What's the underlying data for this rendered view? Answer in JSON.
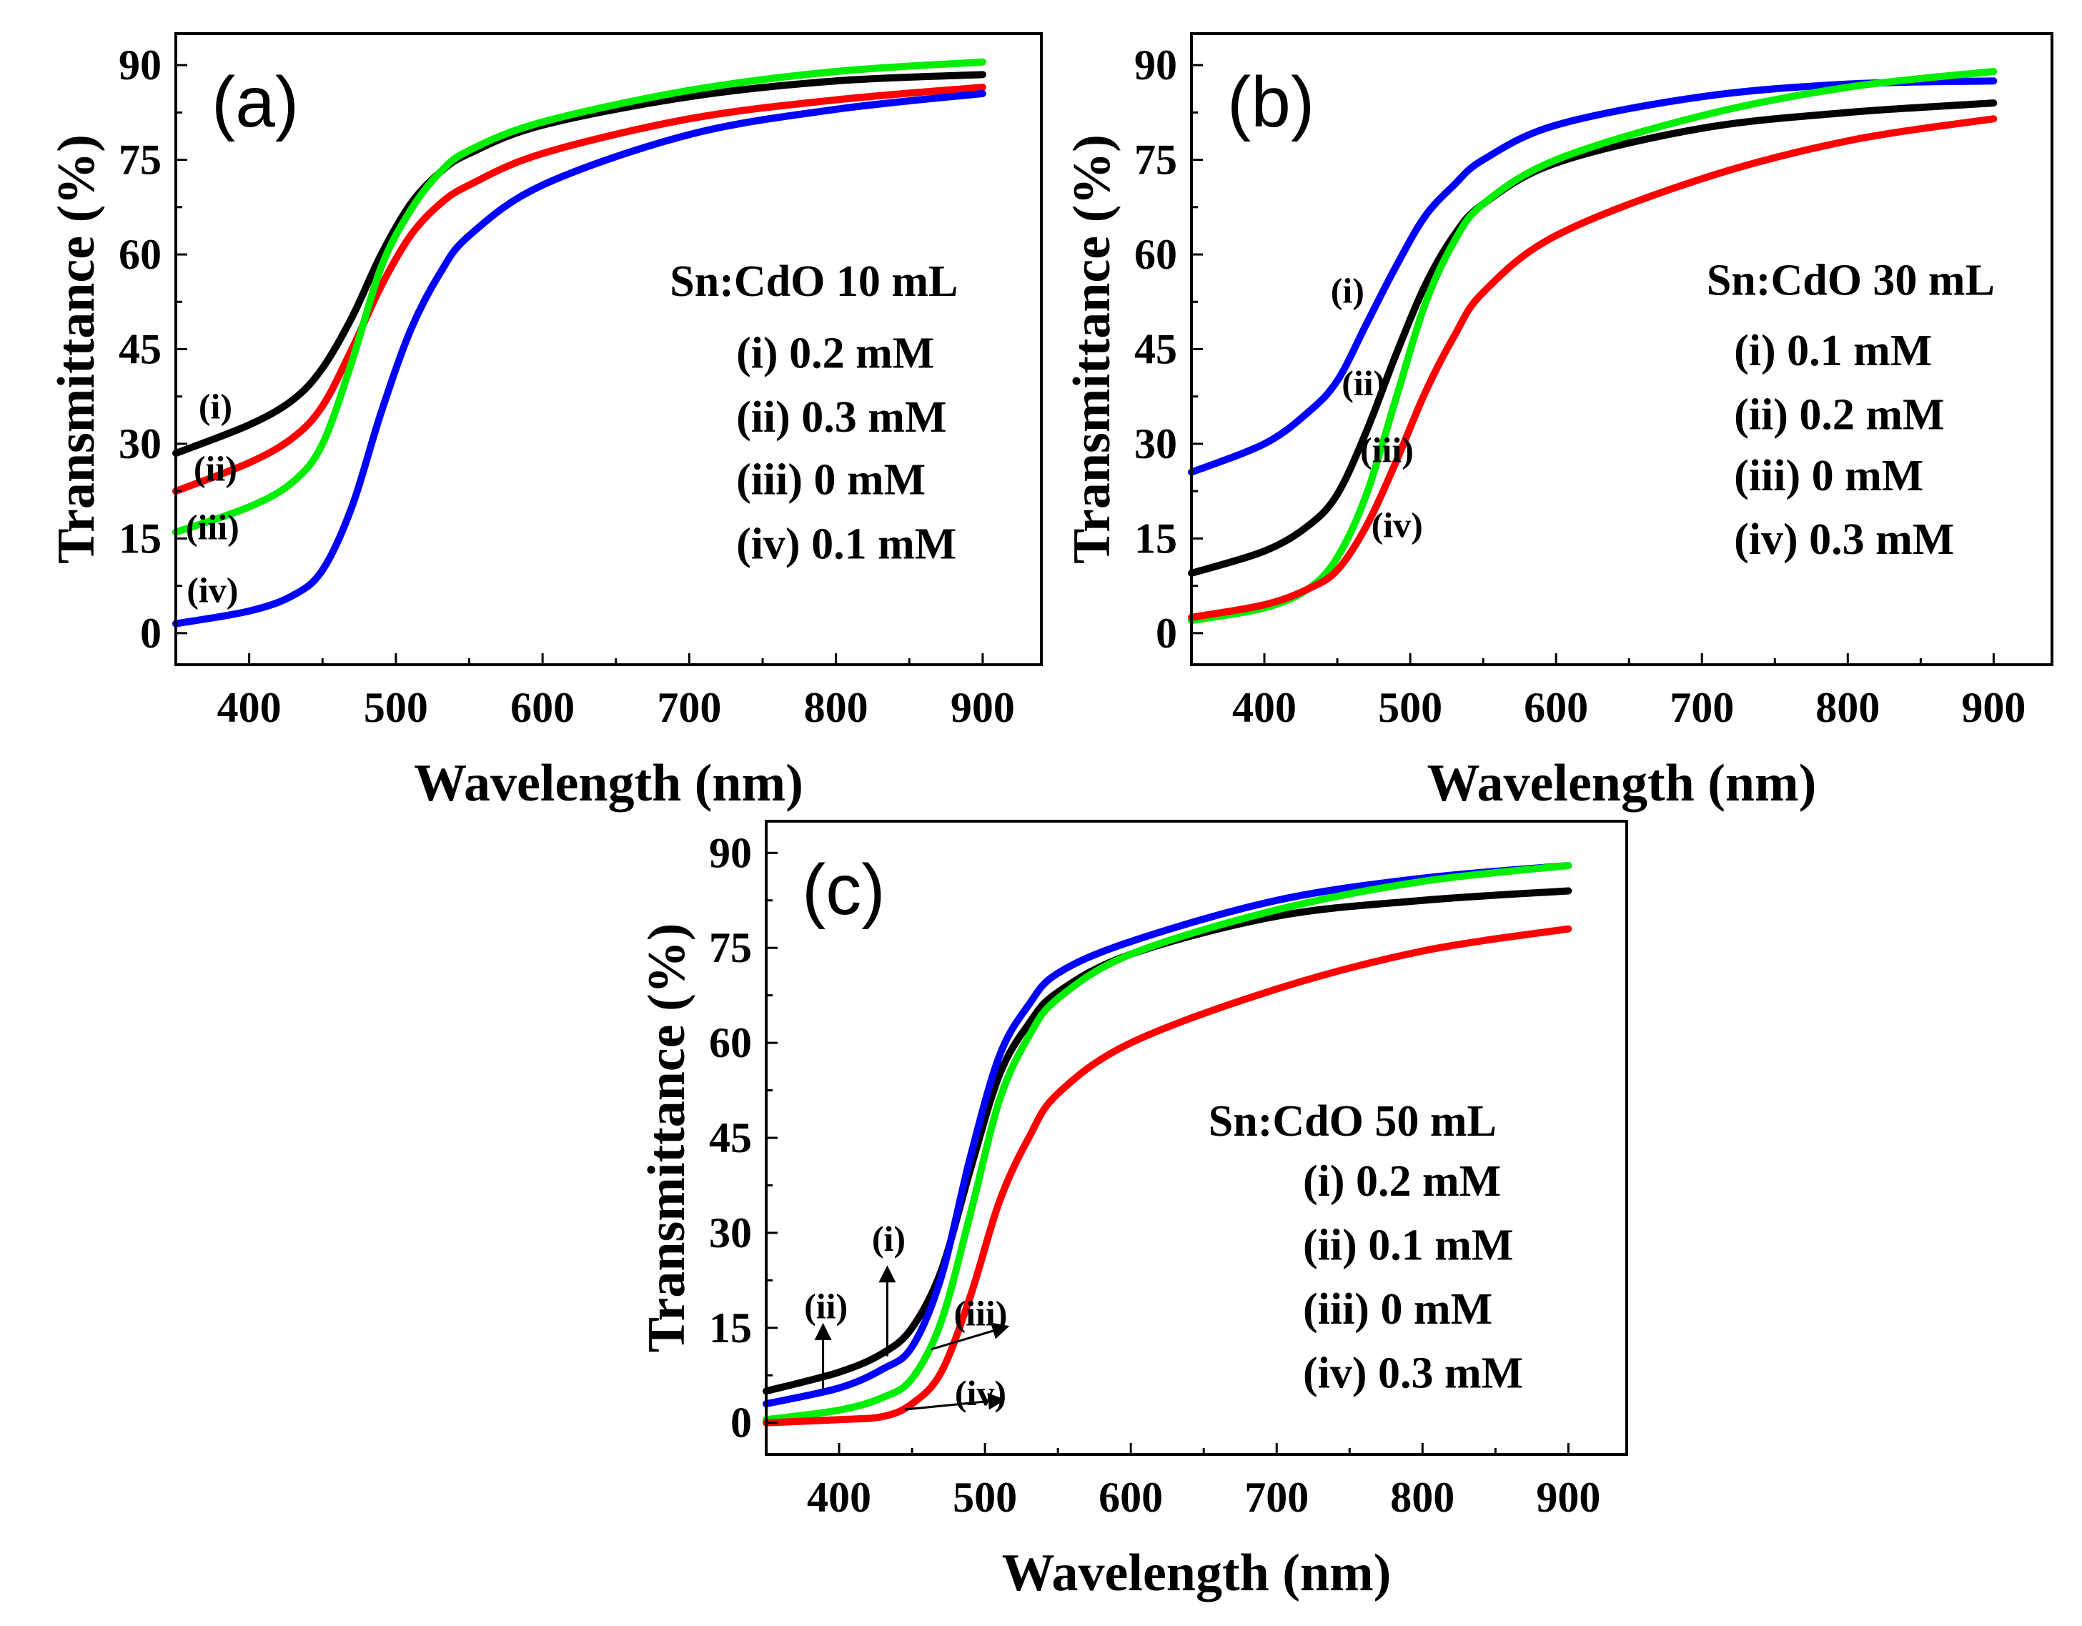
{
  "chart_data": [
    {
      "type": "line",
      "panel_label": "(a)",
      "xlabel": "Wavelength (nm)",
      "ylabel": "Transmittance (%)",
      "xlim": [
        350,
        940
      ],
      "ylim": [
        -5,
        95
      ],
      "xticks": [
        400,
        500,
        600,
        700,
        800,
        900
      ],
      "yticks": [
        0,
        15,
        30,
        45,
        60,
        75,
        90
      ],
      "x": [
        350,
        400,
        430,
        450,
        470,
        490,
        510,
        530,
        550,
        600,
        700,
        800,
        900
      ],
      "legend_title": "Sn:CdO 10 mL",
      "legend_lines": [
        "(i) 0.2 mM",
        "(ii) 0.3 mM",
        "(iii) 0 mM",
        "(iv) 0.1 mM"
      ],
      "series": [
        {
          "name": "(i) 0.2 mM",
          "color": "#000000",
          "values": [
            28.5,
            33,
            37,
            42,
            50,
            60,
            68,
            73,
            76,
            80.5,
            85,
            87.5,
            88.5
          ]
        },
        {
          "name": "(ii) 0.3 mM",
          "color": "#ff0000",
          "values": [
            22.5,
            27,
            31,
            36,
            45,
            55,
            63,
            68,
            71,
            76,
            81.5,
            84.5,
            86.5
          ]
        },
        {
          "name": "(iii) 0 mM",
          "color": "#00ee00",
          "values": [
            16,
            20,
            24,
            30,
            43,
            58,
            67,
            73,
            76.5,
            81,
            86,
            89,
            90.5
          ]
        },
        {
          "name": "(iv) 0.1 mM",
          "color": "#0000ff",
          "values": [
            1.5,
            3.5,
            6,
            10,
            20,
            35,
            48,
            57,
            63,
            71,
            79,
            83,
            85.5
          ]
        }
      ],
      "annotations": [
        {
          "text": "(i)",
          "at": [
            377,
            35.8
          ]
        },
        {
          "text": "(ii)",
          "at": [
            377,
            26
          ]
        },
        {
          "text": "(iii)",
          "at": [
            375,
            16.7
          ]
        },
        {
          "text": "(iv)",
          "at": [
            375,
            6.7
          ]
        }
      ]
    },
    {
      "type": "line",
      "panel_label": "(b)",
      "xlabel": "Wavelength (nm)",
      "ylabel": "Transmittance (%)",
      "xlim": [
        350,
        940
      ],
      "ylim": [
        -5,
        95
      ],
      "xticks": [
        400,
        500,
        600,
        700,
        800,
        900
      ],
      "yticks": [
        0,
        15,
        30,
        45,
        60,
        75,
        90
      ],
      "x": [
        350,
        400,
        430,
        450,
        470,
        490,
        510,
        530,
        550,
        600,
        700,
        800,
        900
      ],
      "legend_title": "Sn:CdO 30 mL",
      "legend_lines": [
        "(i) 0.1 mM",
        "(ii) 0.2 mM",
        "(iii) 0 mM",
        "(iv) 0.3 mM"
      ],
      "series": [
        {
          "name": "(i) 0.1 mM",
          "color": "#0000ff",
          "values": [
            25.5,
            30,
            35,
            40,
            49,
            58,
            66,
            71,
            75,
            80.5,
            85,
            87,
            87.5
          ]
        },
        {
          "name": "(ii) 0.2 mM",
          "color": "#000000",
          "values": [
            9.5,
            13,
            17,
            22,
            32,
            44,
            55,
            63,
            68,
            74.5,
            80,
            82.5,
            84
          ]
        },
        {
          "name": "(iii) 0 mM",
          "color": "#00ee00",
          "values": [
            2,
            4,
            7,
            12,
            22,
            37,
            52,
            62,
            68,
            75,
            82,
            86.5,
            89
          ]
        },
        {
          "name": "(iv) 0.3 mM",
          "color": "#ff0000",
          "values": [
            2.5,
            4.5,
            7,
            10,
            17,
            27,
            38,
            47,
            54,
            63,
            72,
            78,
            81.5
          ]
        }
      ],
      "annotations": [
        {
          "text": "(i)",
          "at": [
            457,
            54.2
          ]
        },
        {
          "text": "(ii)",
          "at": [
            468,
            39.5
          ]
        },
        {
          "text": "(iii)",
          "at": [
            484,
            28.9
          ]
        },
        {
          "text": "(iv)",
          "at": [
            491,
            17
          ]
        }
      ]
    },
    {
      "type": "line",
      "panel_label": "(c)",
      "xlabel": "Wavelength (nm)",
      "ylabel": "Transmittance (%)",
      "xlim": [
        350,
        940
      ],
      "ylim": [
        -5,
        95
      ],
      "xticks": [
        400,
        500,
        600,
        700,
        800,
        900
      ],
      "yticks": [
        0,
        15,
        30,
        45,
        60,
        75,
        90
      ],
      "x": [
        350,
        400,
        430,
        450,
        470,
        490,
        510,
        530,
        550,
        600,
        700,
        800,
        900
      ],
      "legend_title": "Sn:CdO 50 mL",
      "legend_lines": [
        "(i) 0.2 mM",
        "(ii) 0.1 mM",
        "(iii) 0 mM",
        "(iv) 0.3 mM"
      ],
      "series": [
        {
          "name": "(i) 0.2 mM",
          "color": "#000000",
          "values": [
            5,
            8,
            11,
            15,
            24,
            40,
            55,
            63,
            68,
            74,
            80,
            82.5,
            84
          ]
        },
        {
          "name": "(ii) 0.1 mM",
          "color": "#0000ff",
          "values": [
            3,
            5.5,
            8.5,
            12,
            23,
            42,
            58,
            66,
            71,
            76,
            82.5,
            86,
            88
          ]
        },
        {
          "name": "(iii) 0 mM",
          "color": "#00ee00",
          "values": [
            0.5,
            2,
            4,
            7,
            16,
            33,
            51,
            61,
            67,
            74,
            81,
            85.5,
            88
          ]
        },
        {
          "name": "(iv) 0.3 mM",
          "color": "#ff0000",
          "values": [
            0,
            0.5,
            1,
            3,
            8,
            20,
            35,
            45,
            52,
            60,
            68.5,
            74.5,
            78
          ]
        }
      ],
      "annotations": [
        {
          "text": "(i)",
          "at": [
            434,
            29
          ],
          "arrow_from": [
            433,
            10.5
          ],
          "arrow_to": [
            433,
            24.2
          ]
        },
        {
          "text": "(ii)",
          "at": [
            391,
            18.3
          ],
          "arrow_from": [
            389,
            5.3
          ],
          "arrow_to": [
            389,
            15.1
          ]
        },
        {
          "text": "(iii)",
          "at": [
            497,
            17.2
          ],
          "arrow_from": [
            463,
            11.6
          ],
          "arrow_to": [
            514,
            15.1
          ]
        },
        {
          "text": "(iv)",
          "at": [
            497,
            4.6
          ],
          "arrow_from": [
            445,
            2.1
          ],
          "arrow_to": [
            511,
            3.6
          ]
        }
      ]
    }
  ]
}
